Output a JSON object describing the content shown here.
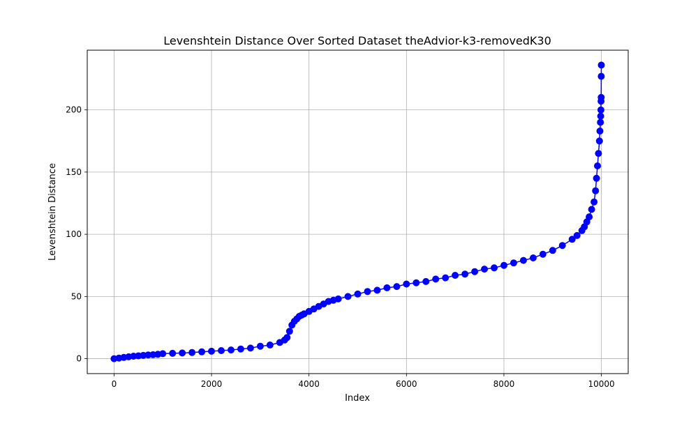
{
  "chart_data": {
    "type": "line",
    "title": "Levenshtein Distance Over Sorted Dataset theAdvior-k3-removedK30",
    "xlabel": "Index",
    "ylabel": "Levenshtein Distance",
    "xlim": [
      -550,
      10550
    ],
    "ylim": [
      -12,
      248
    ],
    "xticks": [
      0,
      2000,
      4000,
      6000,
      8000,
      10000
    ],
    "yticks": [
      0,
      50,
      100,
      150,
      200
    ],
    "xtick_labels": [
      "0",
      "2000",
      "4000",
      "6000",
      "8000",
      "10000"
    ],
    "ytick_labels": [
      "0",
      "50",
      "100",
      "150",
      "200"
    ],
    "grid": true,
    "marker": "circle",
    "color": "#0000ff",
    "series": [
      {
        "x": [
          0,
          100,
          200,
          300,
          400,
          500,
          600,
          700,
          800,
          900,
          1000,
          1200,
          1400,
          1600,
          1800,
          2000,
          2200,
          2400,
          2600,
          2800,
          3000,
          3200,
          3400,
          3500,
          3550,
          3600,
          3650,
          3700,
          3750,
          3800,
          3850,
          3900,
          4000,
          4100,
          4200,
          4300,
          4400,
          4500,
          4600,
          4800,
          5000,
          5200,
          5400,
          5600,
          5800,
          6000,
          6200,
          6400,
          6600,
          6800,
          7000,
          7200,
          7400,
          7600,
          7800,
          8000,
          8200,
          8400,
          8600,
          8800,
          9000,
          9200,
          9400,
          9500,
          9600,
          9650,
          9700,
          9750,
          9800,
          9850,
          9880,
          9900,
          9920,
          9940,
          9960,
          9970,
          9980,
          9985,
          9990,
          9993,
          9995,
          9997,
          9999
        ],
        "y": [
          0,
          0.5,
          1,
          1.5,
          2,
          2.3,
          2.6,
          3,
          3.2,
          3.5,
          4,
          4.3,
          4.6,
          5,
          5.5,
          6,
          6.5,
          7,
          7.8,
          8.5,
          10,
          11,
          13,
          15,
          17,
          22,
          27,
          30,
          32,
          34,
          35,
          36,
          38,
          40,
          42,
          44,
          46,
          47,
          48,
          50,
          52,
          54,
          55,
          57,
          58,
          60,
          61,
          62,
          64,
          65,
          67,
          68,
          70,
          72,
          73,
          75,
          77,
          79,
          81,
          84,
          87,
          91,
          96,
          99,
          103,
          106,
          110,
          114,
          120,
          126,
          135,
          145,
          155,
          165,
          175,
          183,
          190,
          195,
          200,
          207,
          210,
          227,
          236
        ]
      }
    ]
  }
}
